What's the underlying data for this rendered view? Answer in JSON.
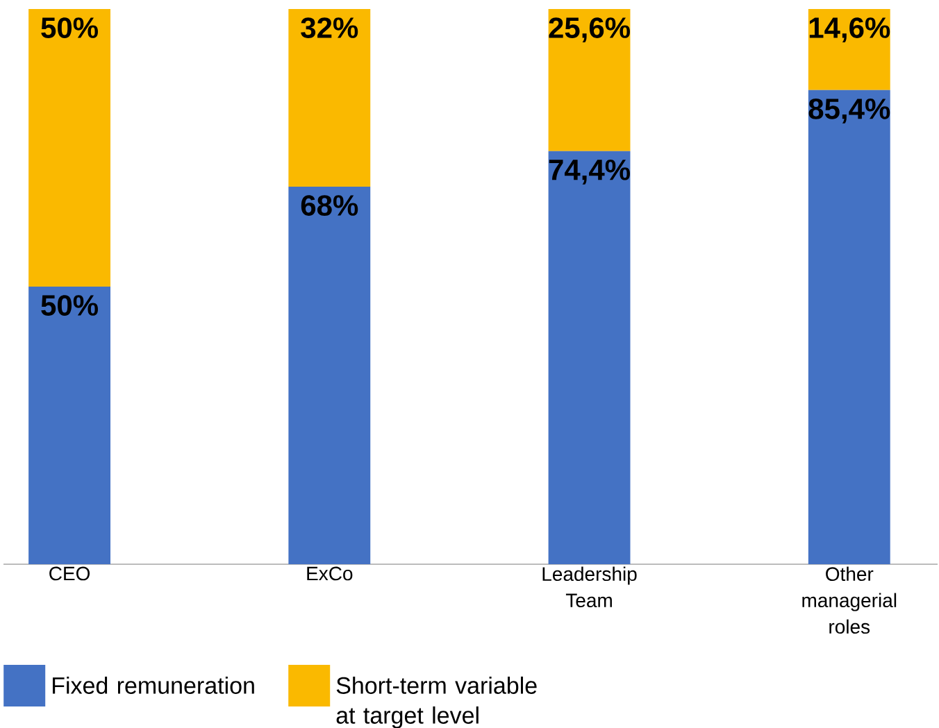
{
  "chart_data": {
    "type": "bar",
    "stacked": true,
    "categories": [
      "CEO",
      "ExCo",
      "Leadership Team",
      "Other managerial roles"
    ],
    "series": [
      {
        "name": "Fixed remuneration",
        "color": "#4472c4",
        "values": [
          50,
          68,
          74.4,
          85.4
        ],
        "value_labels": [
          "50%",
          "68%",
          "74,4%",
          "85,4%"
        ]
      },
      {
        "name": "Short-term variable at target level",
        "color": "#fab900",
        "values": [
          50,
          32,
          25.6,
          14.6
        ],
        "value_labels": [
          "50%",
          "32%",
          "25,6%",
          "14,6%"
        ]
      }
    ],
    "legend": "bottom left"
  }
}
